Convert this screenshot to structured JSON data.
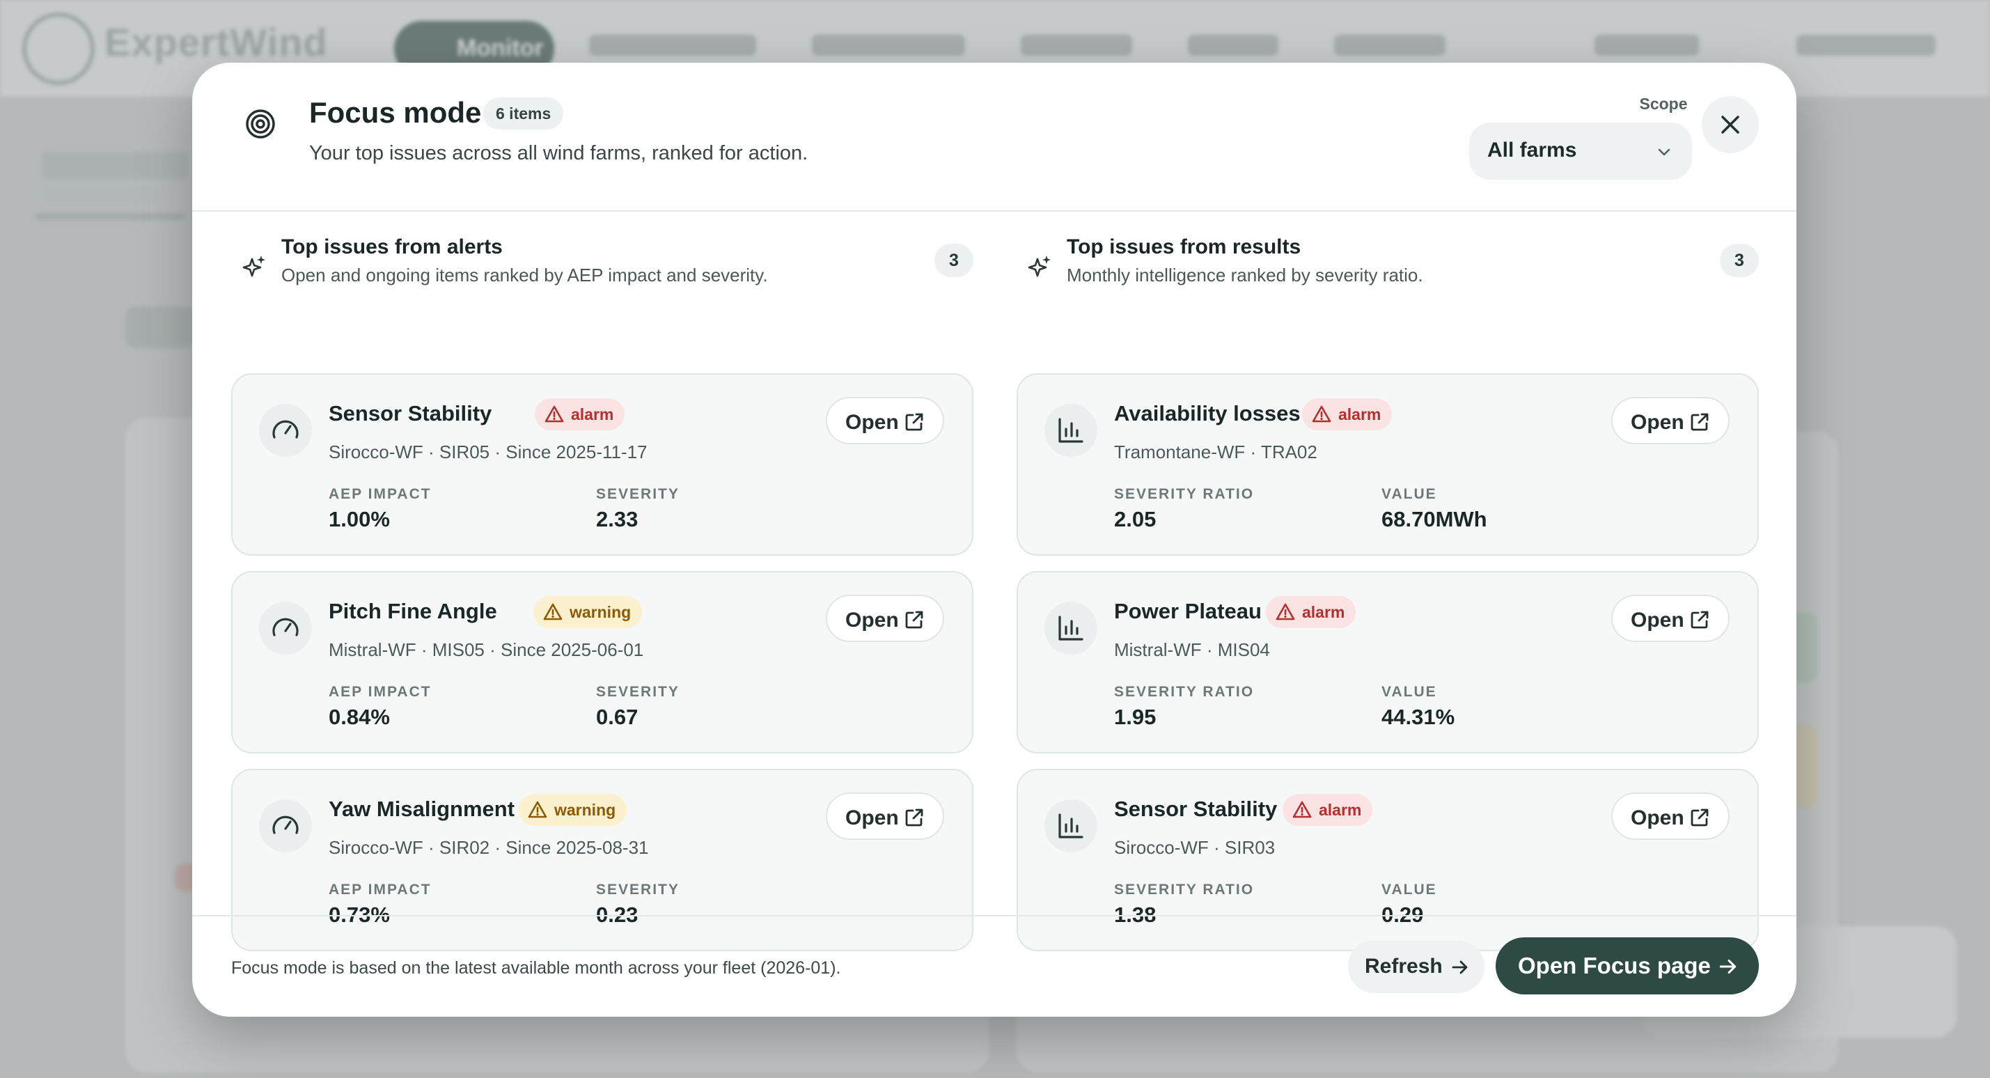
{
  "background": {
    "logo_text": "ExpertWind",
    "active_nav": "Monitor"
  },
  "modal": {
    "title": "Focus mode",
    "items_badge": "6 items",
    "subtitle": "Your top issues across all wind farms, ranked for action.",
    "scope_label": "Scope",
    "scope_value": "All farms"
  },
  "alerts": {
    "title": "Top issues from alerts",
    "subtitle": "Open and ongoing items ranked by AEP impact and severity.",
    "count": "3",
    "stat1_label": "AEP IMPACT",
    "stat2_label": "SEVERITY",
    "items": [
      {
        "title": "Sensor Stability",
        "status": "alarm",
        "meta": "Sirocco-WF · SIR05 · Since 2025-11-17",
        "aep_impact": "1.00%",
        "severity": "2.33",
        "open_label": "Open"
      },
      {
        "title": "Pitch Fine Angle",
        "status": "warning",
        "meta": "Mistral-WF · MIS05 · Since 2025-06-01",
        "aep_impact": "0.84%",
        "severity": "0.67",
        "open_label": "Open"
      },
      {
        "title": "Yaw Misalignment",
        "status": "warning",
        "meta": "Sirocco-WF · SIR02 · Since 2025-08-31",
        "aep_impact": "0.73%",
        "severity": "0.23",
        "open_label": "Open"
      }
    ]
  },
  "results": {
    "title": "Top issues from results",
    "subtitle": "Monthly intelligence ranked by severity ratio.",
    "count": "3",
    "stat1_label": "SEVERITY RATIO",
    "stat2_label": "VALUE",
    "items": [
      {
        "title": "Availability losses",
        "status": "alarm",
        "meta": "Tramontane-WF · TRA02",
        "severity_ratio": "2.05",
        "value": "68.70MWh",
        "open_label": "Open"
      },
      {
        "title": "Power Plateau",
        "status": "alarm",
        "meta": "Mistral-WF · MIS04",
        "severity_ratio": "1.95",
        "value": "44.31%",
        "open_label": "Open"
      },
      {
        "title": "Sensor Stability",
        "status": "alarm",
        "meta": "Sirocco-WF · SIR03",
        "severity_ratio": "1.38",
        "value": "0.29",
        "open_label": "Open"
      }
    ]
  },
  "footer": {
    "note": "Focus mode is based on the latest available month across your fleet (2026-01).",
    "refresh_label": "Refresh",
    "primary_label": "Open Focus page"
  },
  "colors": {
    "primary": "#2d4a44",
    "alarm_bg": "#fbe3e3",
    "alarm_text": "#b3302f",
    "warning_bg": "#fcf1cf",
    "warning_text": "#8c5a07"
  },
  "icons": {
    "header": "target-icon",
    "section": "sparkles-icon",
    "alert_card": "gauge-icon",
    "result_card": "bar-chart-icon",
    "open": "external-link-icon",
    "close": "close-icon"
  }
}
